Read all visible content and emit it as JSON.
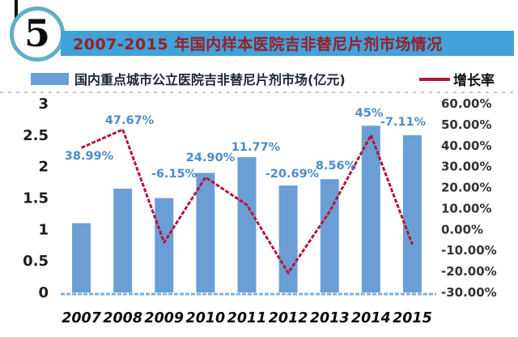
{
  "badge": {
    "number": "5"
  },
  "header": {
    "title": "2007-2015 年国内样本医院吉非替尼片剂市场情况"
  },
  "legend": {
    "bar_label": "国内重点城市公立医院吉非替尼片剂市场(亿元)",
    "line_label": "增长率"
  },
  "colors": {
    "bar": "#6c9ed6",
    "line": "#b2183a",
    "point_label": "#4a8ccc",
    "title_bg": "#41a1d9",
    "title_text": "#9a1f26",
    "axis_text": "#1c1c1c",
    "right_axis_text": "#333333",
    "baseline": "#7eb0e0"
  },
  "chart_data": {
    "type": "combo",
    "categories": [
      "2007",
      "2008",
      "2009",
      "2010",
      "2011",
      "2012",
      "2013",
      "2014",
      "2015"
    ],
    "series": [
      {
        "name": "国内重点城市公立医院吉非替尼片剂市场(亿元)",
        "type": "bar",
        "axis": "left",
        "values": [
          1.1,
          1.65,
          1.5,
          1.9,
          2.15,
          1.7,
          1.8,
          2.65,
          2.5
        ]
      },
      {
        "name": "增长率",
        "type": "line",
        "axis": "right",
        "values": [
          38.99,
          47.67,
          -6.15,
          24.9,
          11.77,
          -20.69,
          8.56,
          45,
          -7.11
        ],
        "labels": [
          "38.99%",
          "47.67%",
          "-6.15%",
          "24.90%",
          "11.77%",
          "-20.69%",
          "8.56%",
          "45%",
          "-7.11%"
        ]
      }
    ],
    "left_axis": {
      "min": 0,
      "max": 3,
      "step": 0.5,
      "ticks": [
        "3",
        "2.5",
        "2",
        "1.5",
        "1",
        "0.5",
        "0"
      ]
    },
    "right_axis": {
      "min": -30,
      "max": 60,
      "step": 10,
      "ticks": [
        "60.00%",
        "50.00%",
        "40.00%",
        "30.00%",
        "20.00%",
        "10.00%",
        "0.00%",
        "-10.00%",
        "-20.00%",
        "-30.00%"
      ]
    },
    "grid": false,
    "legend_position": "top"
  }
}
